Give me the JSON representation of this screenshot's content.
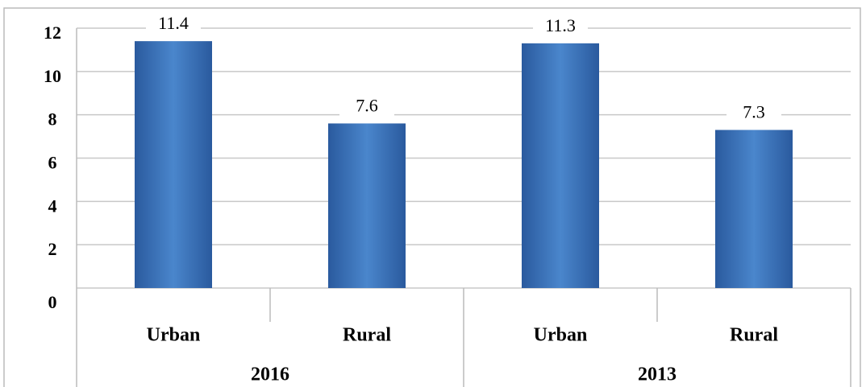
{
  "chart_data": {
    "type": "bar",
    "color": "#3f78c0",
    "groups": [
      {
        "name": "2016",
        "categories": [
          "Urban",
          "Rural"
        ],
        "values": [
          11.4,
          7.6
        ]
      },
      {
        "name": "2013",
        "categories": [
          "Urban",
          "Rural"
        ],
        "values": [
          11.3,
          7.3
        ]
      }
    ],
    "ylim": [
      0,
      12
    ],
    "yticks": [
      0,
      2,
      4,
      6,
      8,
      10,
      12
    ],
    "grid": true
  }
}
